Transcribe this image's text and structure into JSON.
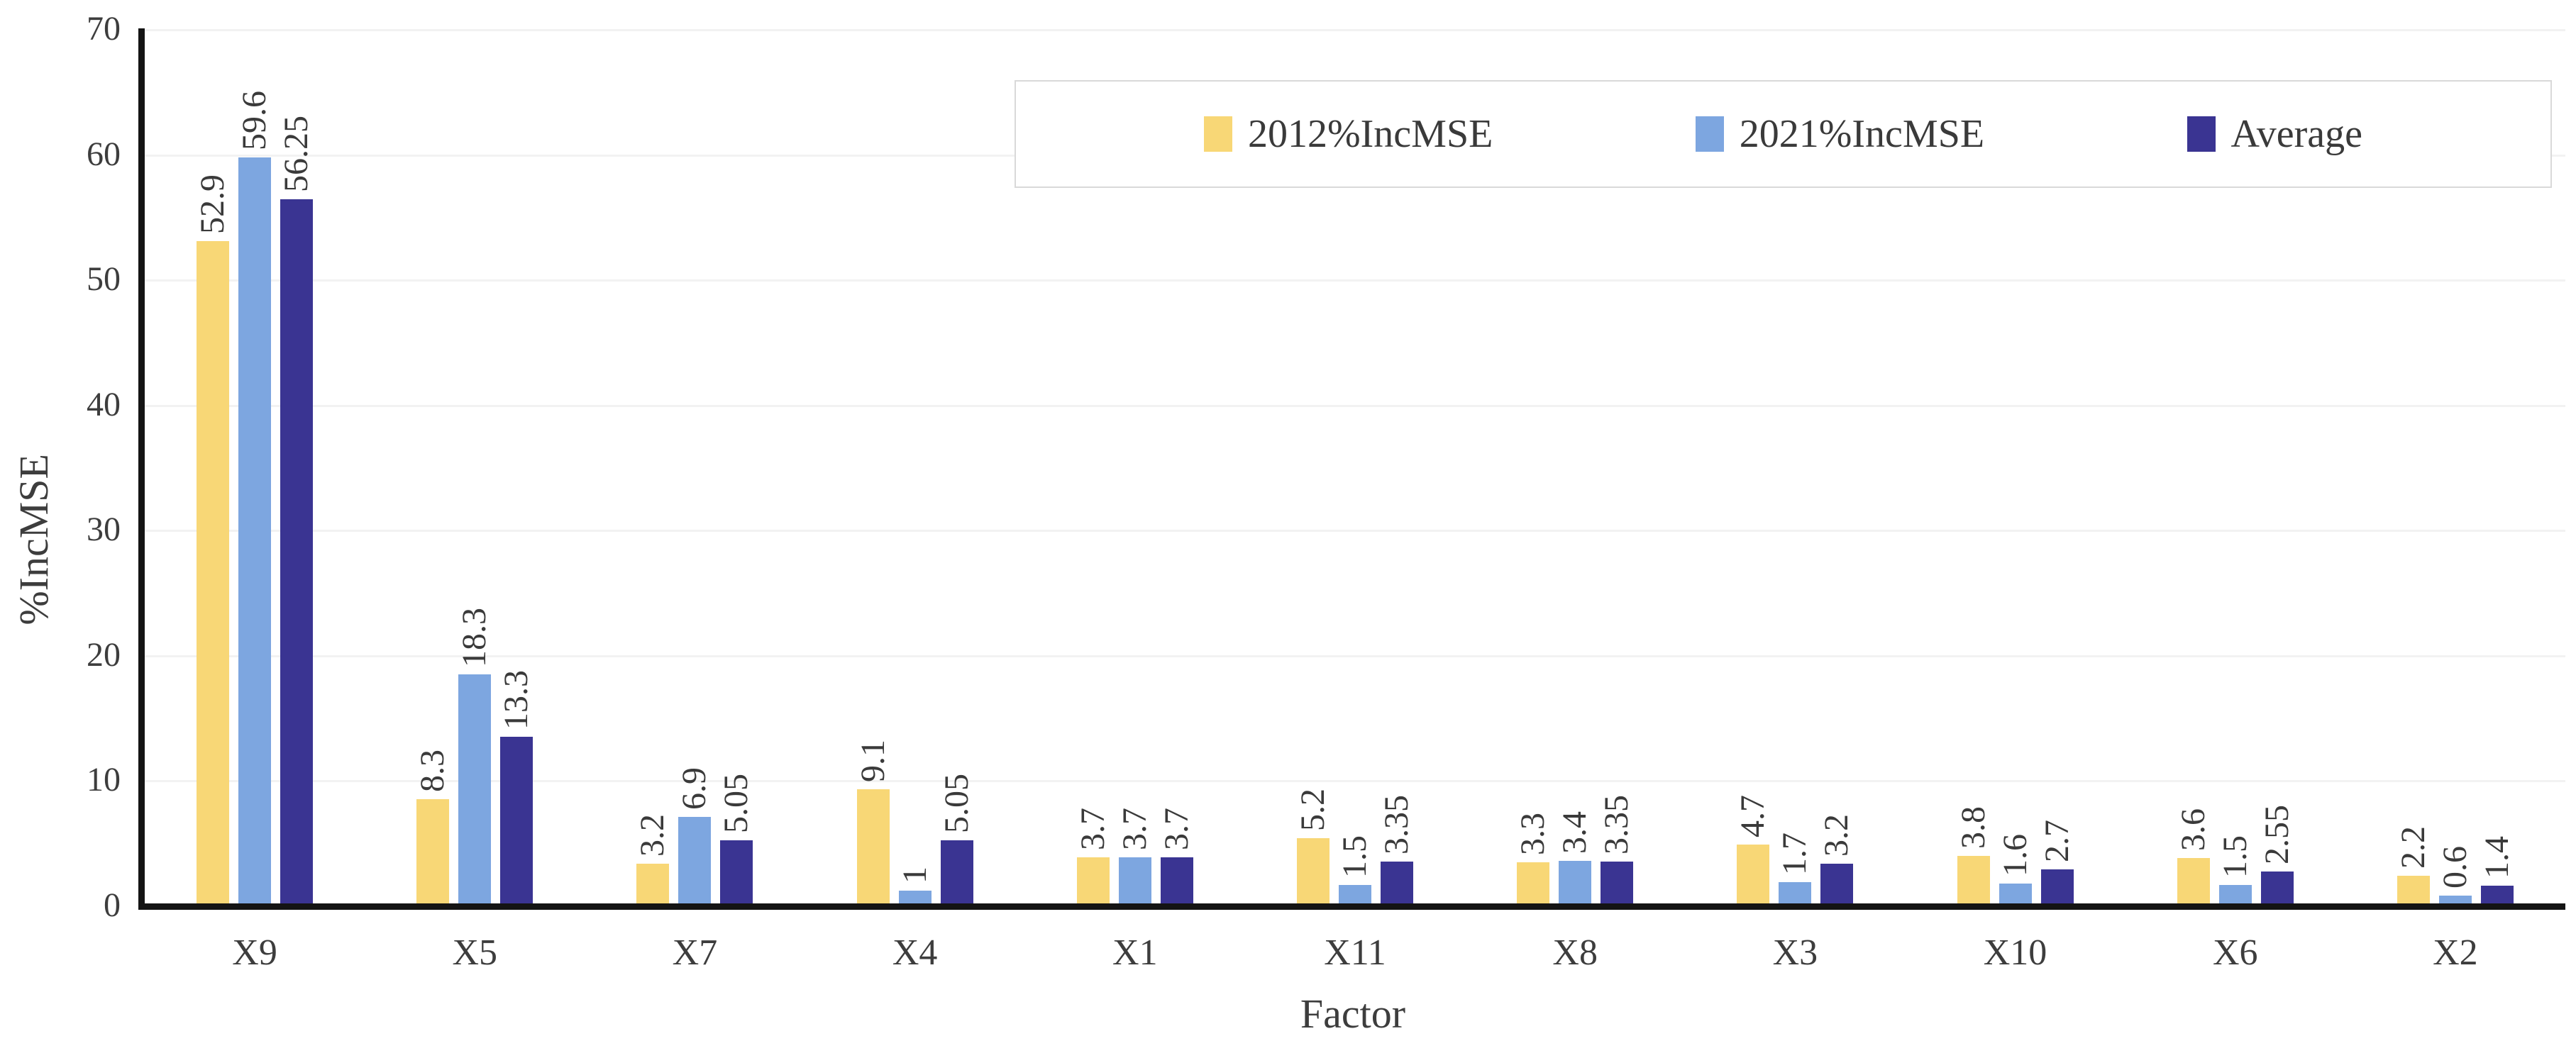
{
  "chart_data": {
    "type": "bar",
    "title": "",
    "xlabel": "Factor",
    "ylabel": "%IncMSE",
    "ylim": [
      0,
      70
    ],
    "yticks": [
      0,
      10,
      20,
      30,
      40,
      50,
      60,
      70
    ],
    "grid": "horizontal-light",
    "legend_position": "top-right-box",
    "bar_value_labels_rotation_deg": -90,
    "categories": [
      "X9",
      "X5",
      "X7",
      "X4",
      "X1",
      "X11",
      "X8",
      "X3",
      "X10",
      "X6",
      "X2"
    ],
    "series": [
      {
        "name": "2012%IncMSE",
        "color": "#f8d776",
        "values": [
          52.9,
          8.3,
          3.2,
          9.1,
          3.7,
          5.2,
          3.3,
          4.7,
          3.8,
          3.6,
          2.2
        ]
      },
      {
        "name": "2021%IncMSE",
        "color": "#7da6e0",
        "values": [
          59.6,
          18.3,
          6.9,
          1,
          3.7,
          1.5,
          3.4,
          1.7,
          1.6,
          1.5,
          0.6
        ]
      },
      {
        "name": "Average",
        "color": "#3a3492",
        "values": [
          56.25,
          13.3,
          5.05,
          5.05,
          3.7,
          3.35,
          3.35,
          3.2,
          2.7,
          2.55,
          1.4
        ]
      }
    ],
    "colors": {
      "axis": "#141414",
      "gridline": "#f2f2f2",
      "text": "#3d3d3d",
      "legend_border": "#d9d9d9"
    }
  }
}
